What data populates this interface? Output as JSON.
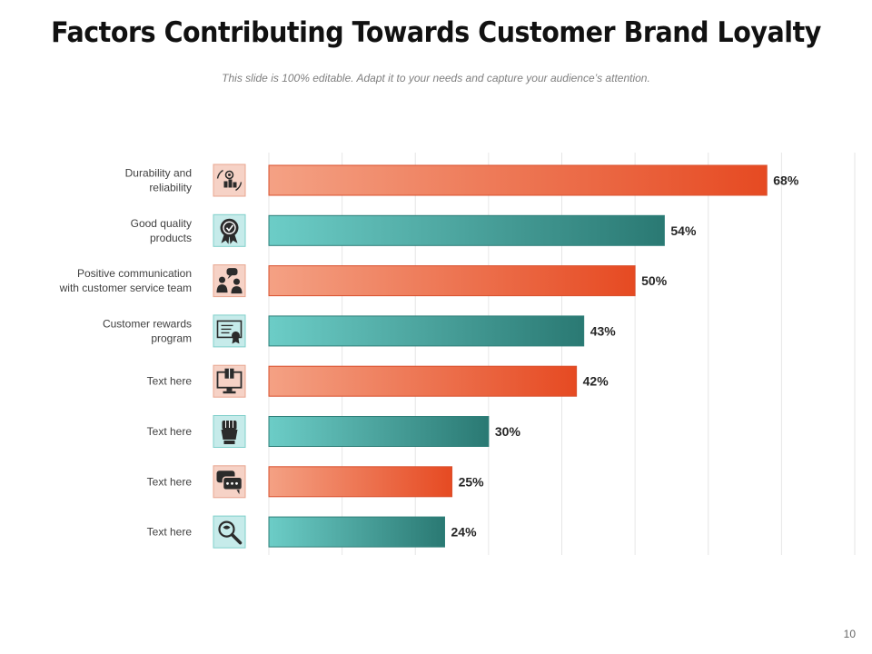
{
  "slide": {
    "title": "Factors Contributing Towards Customer Brand Loyalty",
    "subtitle": "This slide is 100% editable. Adapt it to your needs and capture your audience’s attention.",
    "page_number": "10"
  },
  "colors": {
    "orange_light": "#f4a184",
    "orange_dark": "#e64a22",
    "teal_light": "#6ccdc7",
    "teal_dark": "#2a7973",
    "orange_tile": "#f6d2c6",
    "teal_tile": "#c6ebea",
    "gridline": "#e6e6e6"
  },
  "chart_data": {
    "type": "bar",
    "orientation": "horizontal",
    "categories": [
      [
        "Durability and",
        "reliability"
      ],
      [
        "Good quality",
        "products"
      ],
      [
        "Positive communication",
        "with customer service team"
      ],
      [
        "Customer rewards",
        "program"
      ],
      [
        "Text here"
      ],
      [
        "Text here"
      ],
      [
        "Text here"
      ],
      [
        "Text here"
      ]
    ],
    "values": [
      68,
      54,
      50,
      43,
      42,
      30,
      25,
      24
    ],
    "value_labels": [
      "68%",
      "54%",
      "50%",
      "43%",
      "42%",
      "30%",
      "25%",
      "24%"
    ],
    "icons": [
      "gears-people-icon",
      "award-ribbon-icon",
      "communication-people-icon",
      "certificate-icon",
      "computer-gift-icon",
      "raised-fist-icon",
      "chat-bubbles-icon",
      "magnifier-icon"
    ],
    "bar_color_pattern": [
      "orange",
      "teal",
      "orange",
      "teal",
      "orange",
      "teal",
      "orange",
      "teal"
    ],
    "xlim": [
      0,
      80
    ],
    "grid": true,
    "legend": "none"
  }
}
